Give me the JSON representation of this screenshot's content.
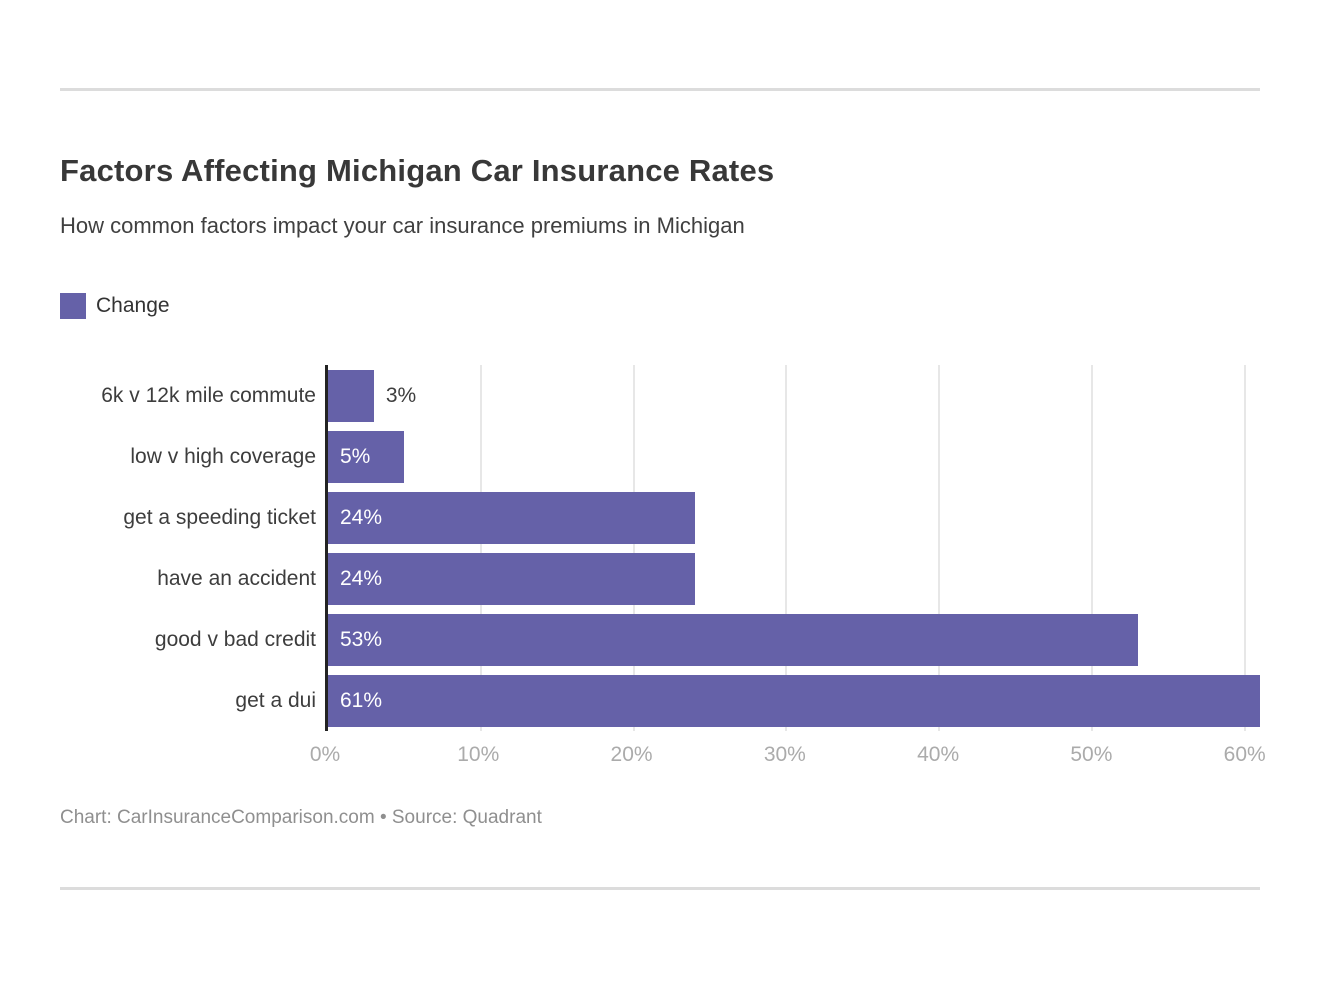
{
  "page": {
    "title": "Factors Affecting Michigan Car Insurance Rates",
    "subtitle": "How common factors impact your car insurance premiums in Michigan",
    "source_line": "Chart: CarInsuranceComparison.com • Source: Quadrant"
  },
  "legend": {
    "label": "Change",
    "swatch_color": "#6561a8",
    "position": "top-left"
  },
  "chart_data": {
    "type": "bar",
    "orientation": "horizontal",
    "title": "Factors Affecting Michigan Car Insurance Rates",
    "subtitle": "How common factors impact your car insurance premiums in Michigan",
    "categories": [
      "6k v 12k mile commute",
      "low v high coverage",
      "get a speeding ticket",
      "have an accident",
      "good v bad credit",
      "get a dui"
    ],
    "series": [
      {
        "name": "Change",
        "values": [
          3,
          5,
          24,
          24,
          53,
          61
        ]
      }
    ],
    "value_labels": [
      "3%",
      "5%",
      "24%",
      "24%",
      "53%",
      "61%"
    ],
    "unit": "%",
    "xlabel": "",
    "ylabel": "",
    "xtick_labels": [
      "0%",
      "10%",
      "20%",
      "30%",
      "40%",
      "50%",
      "60%"
    ],
    "xtick_values": [
      0,
      10,
      20,
      30,
      40,
      50,
      60
    ],
    "xlim": [
      0,
      61
    ],
    "grid": "vertical-only",
    "legend_position": "top-left",
    "bar_color": "#6561a8",
    "value_label_color_inside": "#ffffff",
    "value_label_color_outside": "#3d3d3d",
    "gridline_color": "#e7e7e7",
    "axis_line_color": "#232323"
  }
}
